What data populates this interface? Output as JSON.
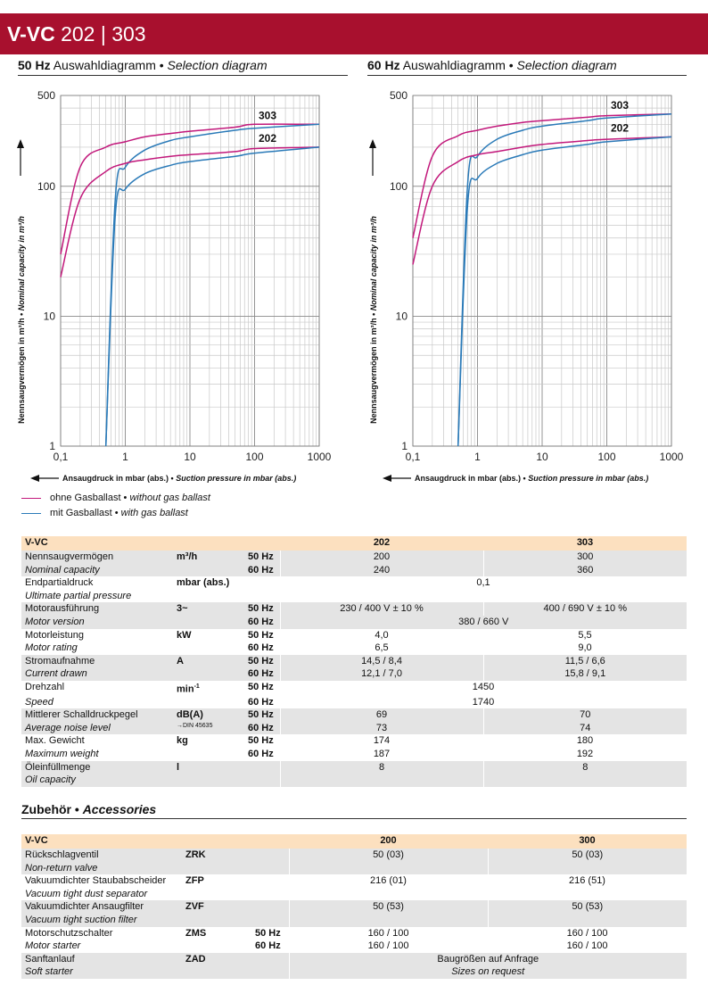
{
  "header": {
    "title_bold": "V-VC",
    "title_rest": "202 | 303"
  },
  "charts_heading": {
    "left": {
      "bold": "50 Hz",
      "rest": " Auswahldiagramm • ",
      "italic": "Selection diagram"
    },
    "right": {
      "bold": "60 Hz",
      "rest": " Auswahldiagramm • ",
      "italic": "Selection diagram"
    }
  },
  "chart_data": [
    {
      "type": "line",
      "title": "50 Hz Auswahldiagramm • Selection diagram",
      "xscale": "log",
      "yscale": "log",
      "xlim": [
        0.1,
        1000
      ],
      "ylim": [
        1,
        500
      ],
      "xticks": [
        "0,1",
        "1",
        "10",
        "100",
        "1000"
      ],
      "yticks": [
        "1",
        "10",
        "100",
        "500"
      ],
      "xlabel_bold": "Ansaugdruck in mbar (abs.) • ",
      "xlabel_italic": "Suction pressure in mbar (abs.)",
      "ylabel_bold": "Nennsaugvermögen in m³/h • ",
      "ylabel_italic": "Nominal capacity in m³/h",
      "grid": true,
      "series": [
        {
          "name": "303",
          "gas_ballast": false,
          "color": "#c2187b",
          "x": [
            0.1,
            0.2,
            0.5,
            1,
            2,
            5,
            10,
            50,
            100,
            1000
          ],
          "y": [
            30,
            140,
            200,
            220,
            240,
            255,
            265,
            285,
            300,
            300
          ]
        },
        {
          "name": "303",
          "gas_ballast": true,
          "color": "#2a7ab8",
          "x": [
            0.5,
            0.7,
            1,
            2,
            5,
            10,
            50,
            100,
            1000
          ],
          "y": [
            1,
            80,
            140,
            190,
            225,
            240,
            270,
            280,
            300
          ]
        },
        {
          "name": "202",
          "gas_ballast": false,
          "color": "#c2187b",
          "x": [
            0.1,
            0.2,
            0.5,
            1,
            2,
            5,
            10,
            50,
            100,
            1000
          ],
          "y": [
            20,
            80,
            130,
            150,
            160,
            170,
            175,
            185,
            195,
            200
          ]
        },
        {
          "name": "202",
          "gas_ballast": true,
          "color": "#2a7ab8",
          "x": [
            0.5,
            0.7,
            1,
            2,
            5,
            10,
            50,
            100,
            1000
          ],
          "y": [
            1,
            60,
            95,
            125,
            145,
            155,
            170,
            180,
            200
          ]
        }
      ]
    },
    {
      "type": "line",
      "title": "60 Hz Auswahldiagramm • Selection diagram",
      "xscale": "log",
      "yscale": "log",
      "xlim": [
        0.1,
        1000
      ],
      "ylim": [
        1,
        500
      ],
      "xticks": [
        "0,1",
        "1",
        "10",
        "100",
        "1000"
      ],
      "yticks": [
        "1",
        "10",
        "100",
        "500"
      ],
      "xlabel_bold": "Ansaugdruck in mbar (abs.) • ",
      "xlabel_italic": "Suction pressure in mbar (abs.)",
      "ylabel_bold": "Nennsaugvermögen in m³/h • ",
      "ylabel_italic": "Nominal capacity in m³/h",
      "grid": true,
      "series": [
        {
          "name": "303",
          "gas_ballast": false,
          "color": "#c2187b",
          "x": [
            0.1,
            0.2,
            0.5,
            1,
            2,
            5,
            10,
            50,
            100,
            1000
          ],
          "y": [
            40,
            170,
            245,
            270,
            290,
            310,
            320,
            340,
            350,
            360
          ]
        },
        {
          "name": "303",
          "gas_ballast": true,
          "color": "#2a7ab8",
          "x": [
            0.5,
            0.7,
            1,
            2,
            5,
            10,
            50,
            100,
            1000
          ],
          "y": [
            1,
            100,
            170,
            230,
            270,
            290,
            320,
            335,
            360
          ]
        },
        {
          "name": "202",
          "gas_ballast": false,
          "color": "#c2187b",
          "x": [
            0.1,
            0.2,
            0.5,
            1,
            2,
            5,
            10,
            50,
            100,
            1000
          ],
          "y": [
            25,
            100,
            155,
            175,
            185,
            200,
            210,
            225,
            230,
            240
          ]
        },
        {
          "name": "202",
          "gas_ballast": true,
          "color": "#2a7ab8",
          "x": [
            0.5,
            0.7,
            1,
            2,
            5,
            10,
            50,
            100,
            1000
          ],
          "y": [
            1,
            70,
            115,
            150,
            175,
            190,
            210,
            220,
            240
          ]
        }
      ]
    }
  ],
  "legend": [
    {
      "color": "#c2187b",
      "text": "ohne Gasballast • ",
      "italic": "without gas ballast"
    },
    {
      "color": "#2a7ab8",
      "text": "mit Gasballast • ",
      "italic": "with gas ballast"
    }
  ],
  "spec_table": {
    "head": {
      "label": "V-VC",
      "c1": "202",
      "c2": "303"
    },
    "rows": {
      "capacity": {
        "de": "Nennsaugvermögen",
        "en": "Nominal capacity",
        "unit": "m³/h",
        "f1": "50 Hz",
        "f2": "60 Hz",
        "a1": "200",
        "b1": "300",
        "a2": "240",
        "b2": "360"
      },
      "pressure": {
        "de": "Endpartialdruck",
        "en": "Ultimate partial pressure",
        "unit": "mbar (abs.)",
        "v": "0,1"
      },
      "motor": {
        "de": "Motorausführung",
        "en": "Motor version",
        "unit": "3~",
        "f1": "50 Hz",
        "f2": "60 Hz",
        "a1": "230 / 400 V ± 10 %",
        "b1": "400 / 690 V ± 10 %",
        "v2": "380 / 660 V"
      },
      "rating": {
        "de": "Motorleistung",
        "en": "Motor rating",
        "unit": "kW",
        "f1": "50 Hz",
        "f2": "60 Hz",
        "a1": "4,0",
        "b1": "5,5",
        "a2": "6,5",
        "b2": "9,0"
      },
      "current": {
        "de": "Stromaufnahme",
        "en": "Current drawn",
        "unit": "A",
        "f1": "50 Hz",
        "f2": "60 Hz",
        "a1": "14,5 / 8,4",
        "b1": "11,5 / 6,6",
        "a2": "12,1 / 7,0",
        "b2": "15,8 / 9,1"
      },
      "speed": {
        "de": "Drehzahl",
        "en": "Speed",
        "unit": "min",
        "unit_sup": "-1",
        "f1": "50 Hz",
        "f2": "60 Hz",
        "v1": "1450",
        "v2": "1740"
      },
      "noise": {
        "de": "Mittlerer Schalldruckpegel",
        "en": "Average noise level",
        "unit": "dB(A)",
        "unit_note": "→DIN 45635",
        "f1": "50 Hz",
        "f2": "60 Hz",
        "a1": "69",
        "b1": "70",
        "a2": "73",
        "b2": "74"
      },
      "weight": {
        "de": "Max. Gewicht",
        "en": "Maximum weight",
        "unit": "kg",
        "f1": "50 Hz",
        "f2": "60 Hz",
        "a1": "174",
        "b1": "180",
        "a2": "187",
        "b2": "192"
      },
      "oil": {
        "de": "Öleinfüllmenge",
        "en": "Oil capacity",
        "unit": "l",
        "a": "8",
        "b": "8"
      }
    }
  },
  "accessories": {
    "heading_bold": "Zubehör • ",
    "heading_italic": "Accessories",
    "head": {
      "label": "V-VC",
      "c1": "200",
      "c2": "300"
    },
    "rows": {
      "zrk": {
        "de": "Rückschlagventil",
        "en": "Non-return valve",
        "code": "ZRK",
        "a": "50 (03)",
        "b": "50 (03)"
      },
      "zfp": {
        "de": "Vakuumdichter Staubabscheider",
        "en": "Vacuum tight dust separator",
        "code": "ZFP",
        "a": "216 (01)",
        "b": "216 (51)"
      },
      "zvf": {
        "de": "Vakuumdichter Ansaugfilter",
        "en": "Vacuum tight suction filter",
        "code": "ZVF",
        "a": "50 (53)",
        "b": "50 (53)"
      },
      "zms": {
        "de": "Motorschutzschalter",
        "en": "Motor starter",
        "code": "ZMS",
        "f1": "50 Hz",
        "f2": "60 Hz",
        "a1": "160 / 100",
        "b1": "160 / 100",
        "a2": "160 / 100",
        "b2": "160 / 100"
      },
      "zad": {
        "de": "Sanftanlauf",
        "en": "Soft starter",
        "code": "ZAD",
        "v1": "Baugrößen auf Anfrage",
        "v2": "Sizes on request"
      }
    }
  }
}
